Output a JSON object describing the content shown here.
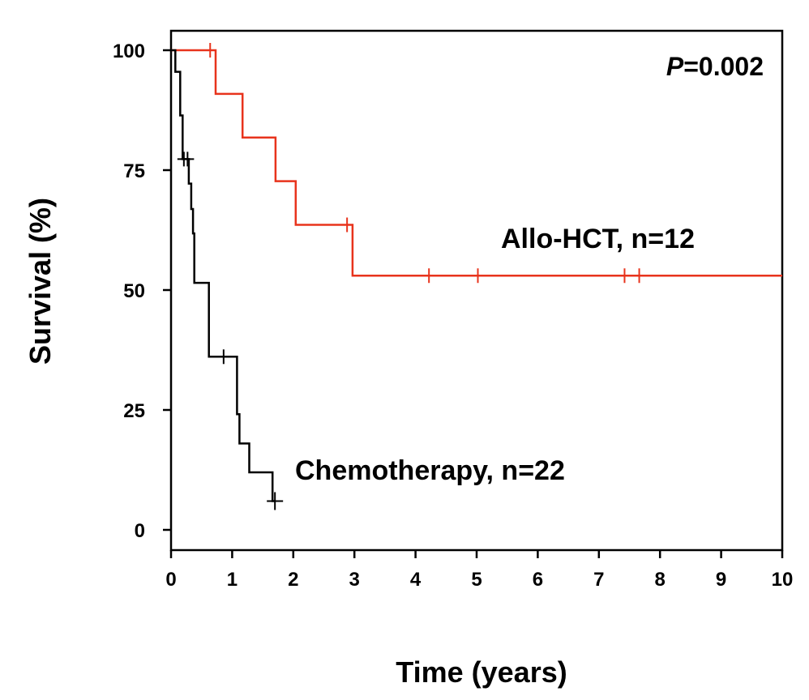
{
  "chart_data": {
    "type": "line",
    "subtype": "kaplan-meier step curve",
    "xlabel": "Time (years)",
    "ylabel": "Survival (%)",
    "xlim": [
      0,
      10
    ],
    "ylim": [
      0,
      100
    ],
    "xticks": [
      0,
      1,
      2,
      3,
      4,
      5,
      6,
      7,
      8,
      9,
      10
    ],
    "yticks": [
      0,
      25,
      50,
      75,
      100
    ],
    "grid": false,
    "annotation": {
      "prefix": "P",
      "text": "=0.002"
    },
    "series": [
      {
        "name": "Allo-HCT, n=12",
        "color": "#e8331c",
        "steps": [
          [
            0,
            100
          ],
          [
            0.73,
            100
          ],
          [
            0.73,
            90.9
          ],
          [
            1.17,
            90.9
          ],
          [
            1.17,
            81.8
          ],
          [
            1.71,
            81.8
          ],
          [
            1.71,
            72.7
          ],
          [
            2.04,
            72.7
          ],
          [
            2.04,
            63.6
          ],
          [
            2.97,
            63.6
          ],
          [
            2.97,
            53.0
          ],
          [
            10.0,
            53.0
          ]
        ],
        "censored": [
          [
            0.64,
            100
          ],
          [
            2.88,
            63.6
          ],
          [
            4.22,
            53.0
          ],
          [
            5.02,
            53.0
          ],
          [
            7.42,
            53.0
          ],
          [
            7.66,
            53.0
          ]
        ]
      },
      {
        "name": "Chemotherapy, n=22",
        "color": "#000000",
        "steps": [
          [
            0,
            100
          ],
          [
            0.07,
            100
          ],
          [
            0.07,
            95.5
          ],
          [
            0.15,
            95.5
          ],
          [
            0.15,
            86.4
          ],
          [
            0.19,
            86.4
          ],
          [
            0.19,
            77.3
          ],
          [
            0.29,
            77.3
          ],
          [
            0.29,
            72.2
          ],
          [
            0.33,
            72.2
          ],
          [
            0.33,
            66.9
          ],
          [
            0.36,
            66.9
          ],
          [
            0.36,
            61.8
          ],
          [
            0.38,
            61.8
          ],
          [
            0.38,
            51.5
          ],
          [
            0.62,
            51.5
          ],
          [
            0.62,
            36.1
          ],
          [
            1.08,
            36.1
          ],
          [
            1.08,
            24.1
          ],
          [
            1.12,
            24.1
          ],
          [
            1.12,
            18.0
          ],
          [
            1.28,
            18.0
          ],
          [
            1.28,
            12.0
          ],
          [
            1.66,
            12.0
          ],
          [
            1.66,
            6.0
          ],
          [
            1.7,
            6.0
          ]
        ],
        "censored": [
          [
            0.21,
            77.3
          ],
          [
            0.27,
            77.3
          ],
          [
            0.86,
            36.1
          ],
          [
            1.7,
            6.0
          ]
        ]
      }
    ]
  }
}
